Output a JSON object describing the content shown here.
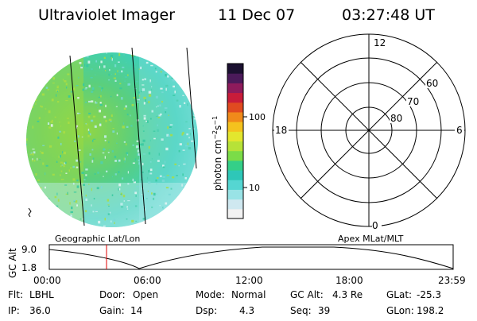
{
  "header": {
    "title": "Ultraviolet Imager",
    "date": "11 Dec 07",
    "time": "03:27:48 UT"
  },
  "colorbar": {
    "label": "photon cm",
    "label_sup1": "−2",
    "label_mid": "s",
    "label_sup2": "−1",
    "ticks": [
      "100",
      "10"
    ],
    "colors": [
      "#f2f2f2",
      "#cfe8f0",
      "#99e3e6",
      "#55d6d2",
      "#2ec7b8",
      "#34cf88",
      "#7bdc48",
      "#b7e238",
      "#e3e62e",
      "#f4c21e",
      "#f08a1a",
      "#e04a20",
      "#c81c3a",
      "#8e1b5c",
      "#4b1a5a",
      "#1b1030"
    ]
  },
  "polar": {
    "labels": {
      "noon": "12",
      "midnight": "0",
      "dusk": "18",
      "dawn": "6",
      "lat60": "60",
      "lat70": "70",
      "lat80": "80"
    }
  },
  "image": {
    "map_labels": [
      "Geographic Lat/Lon",
      "Apex MLat/MLT"
    ]
  },
  "altitude_plot": {
    "ylabel": "GC Alt",
    "yticks": [
      "9.0",
      "1.8"
    ],
    "xticks": [
      "00:00",
      "06:00",
      "12:00",
      "18:00",
      "23:59"
    ],
    "marker_time": "03:27:48",
    "line_color": "#000000",
    "marker_color": "#e00000"
  },
  "info": {
    "row1": [
      {
        "label": "Flt:",
        "value": "LBHL"
      },
      {
        "label": "Door:",
        "value": "Open"
      },
      {
        "label": "Mode:",
        "value": "Normal"
      },
      {
        "label": "GC Alt:",
        "value": "4.3 Re"
      },
      {
        "label": "GLat:",
        "value": "-25.3"
      }
    ],
    "row2": [
      {
        "label": "IP:",
        "value": "36.0"
      },
      {
        "label": "Gain:",
        "value": "14"
      },
      {
        "label": "Dsp:",
        "value": "4.3"
      },
      {
        "label": "Seq:",
        "value": "39"
      },
      {
        "label": "GLon:",
        "value": "198.2"
      }
    ]
  }
}
